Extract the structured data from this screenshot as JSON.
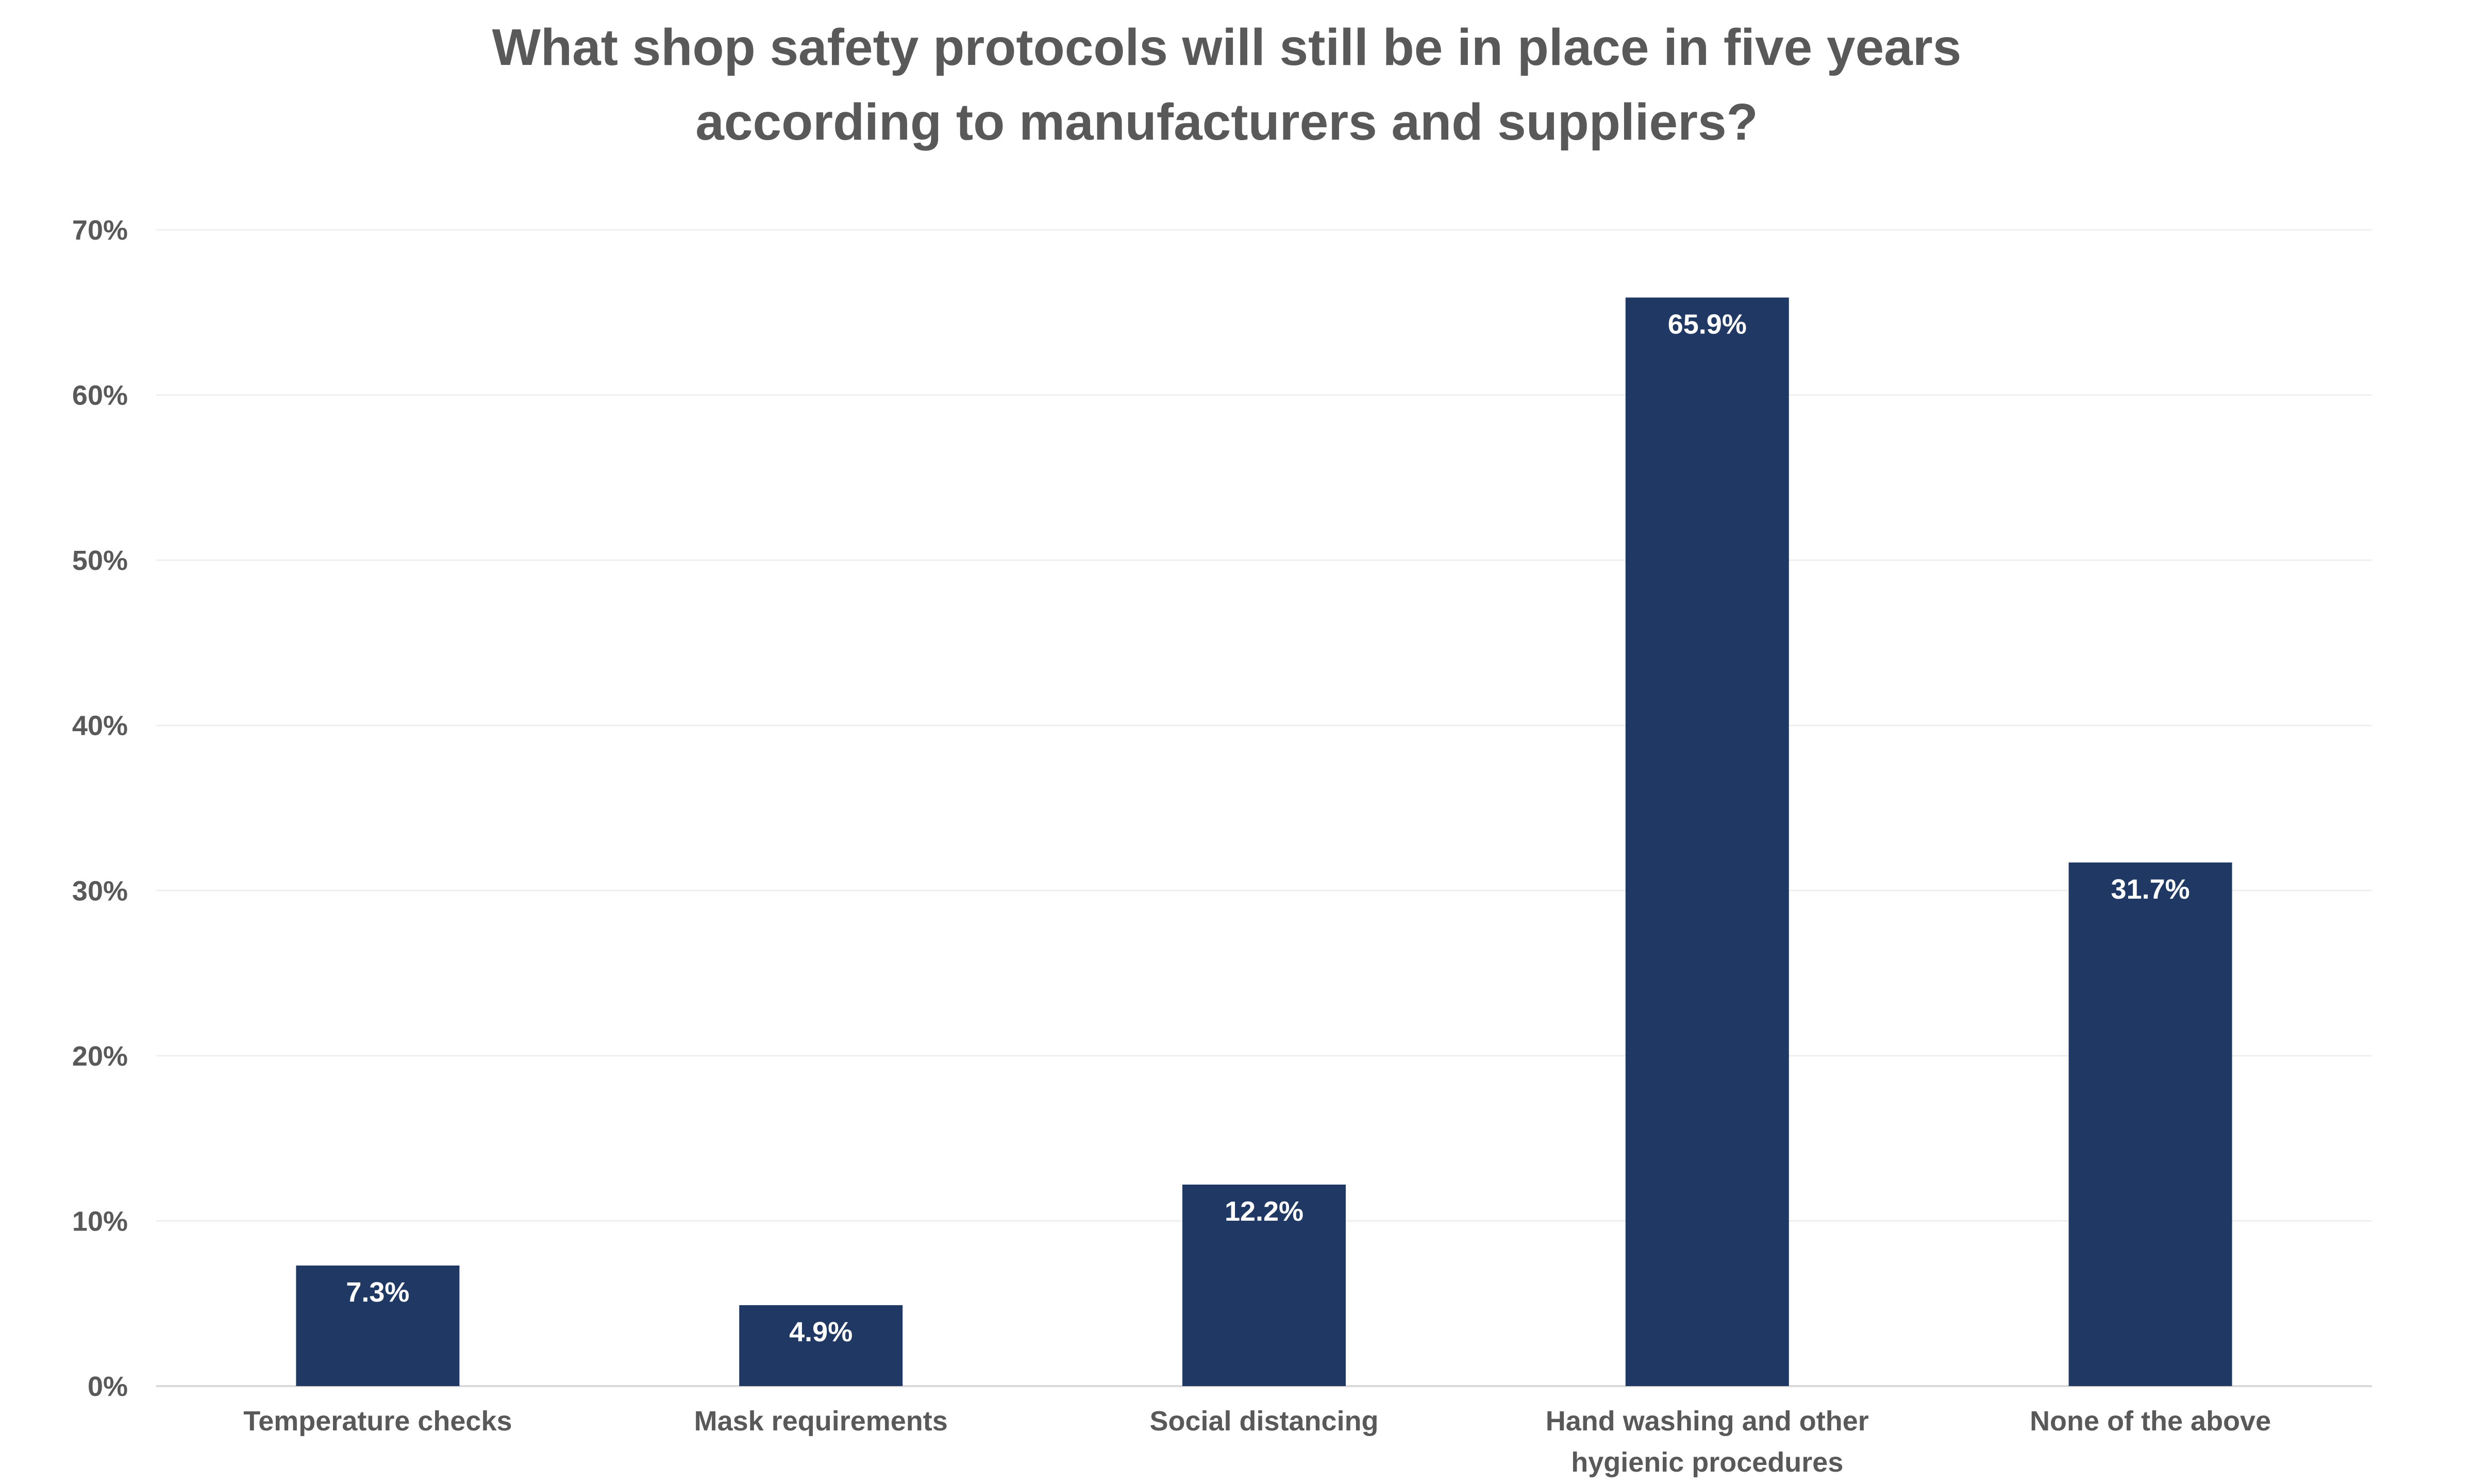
{
  "chart_data": {
    "type": "bar",
    "title_lines": [
      "What shop safety protocols will still be in place in five years",
      "according to manufacturers and suppliers?"
    ],
    "categories": [
      [
        "Temperature checks"
      ],
      [
        "Mask requirements"
      ],
      [
        "Social distancing"
      ],
      [
        "Hand washing and other",
        "hygienic procedures"
      ],
      [
        "None of the above"
      ]
    ],
    "values": [
      7.3,
      4.9,
      12.2,
      65.9,
      31.7
    ],
    "data_labels": [
      "7.3%",
      "4.9%",
      "12.2%",
      "65.9%",
      "31.7%"
    ],
    "yticks": [
      "0%",
      "10%",
      "20%",
      "30%",
      "40%",
      "50%",
      "60%",
      "70%"
    ],
    "ylim": [
      0,
      70
    ],
    "grid": true,
    "legend": "none",
    "bar_color": "#203864",
    "grid_color": "#efefef",
    "text_color": "#595959"
  }
}
